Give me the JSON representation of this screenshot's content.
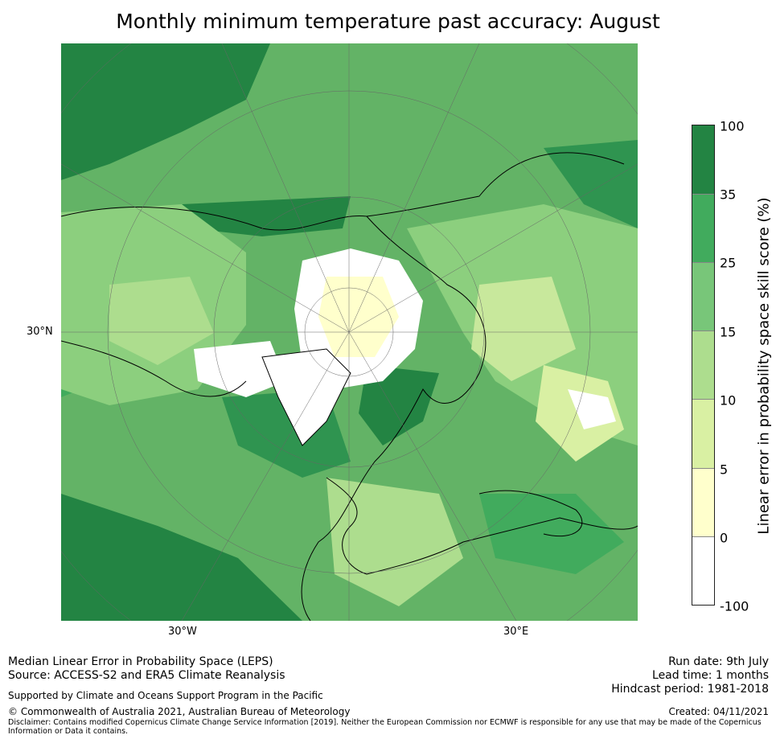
{
  "title": "Monthly minimum temperature past accuracy: August",
  "map": {
    "lat_label": "30°N",
    "lon_labels": [
      "30°W",
      "30°E"
    ],
    "colors": {
      "lt0": "#ffffff",
      "0to5": "#ffffcc",
      "5to10": "#d9f0a3",
      "10to15": "#addd8e",
      "15to25": "#78c679",
      "25to35": "#41ab5d",
      "35to100": "#238443"
    }
  },
  "colorbar": {
    "ticks": [
      "100",
      "35",
      "25",
      "15",
      "10",
      "5",
      "0",
      "-100"
    ],
    "label": "Linear error in probability space skill score (%)",
    "colors": [
      "#238443",
      "#41ab5d",
      "#78c679",
      "#addd8e",
      "#d9f0a3",
      "#ffffcc",
      "#ffffff"
    ]
  },
  "footer": {
    "line1": "Median Linear Error in Probability Space (LEPS)",
    "line2": "Source: ACCESS-S2 and ERA5 Climate Reanalysis",
    "supported": "Supported by Climate and Oceans Support Program in the Pacific",
    "copyright": "© Commonwealth of Australia 2021, Australian Bureau of Meteorology",
    "disclaimer1": "Disclaimer: Contains modified Copernicus Climate Change Service Information [2019]. Neither the European Commission nor ECMWF is responsible for any use that may be made of the Copernicus",
    "disclaimer2": "Information or Data it contains.",
    "run_date": "Run date: 9th July",
    "lead_time": "Lead time: 1 months",
    "hindcast": "Hindcast period: 1981-2018",
    "created": "Created: 04/11/2021"
  }
}
